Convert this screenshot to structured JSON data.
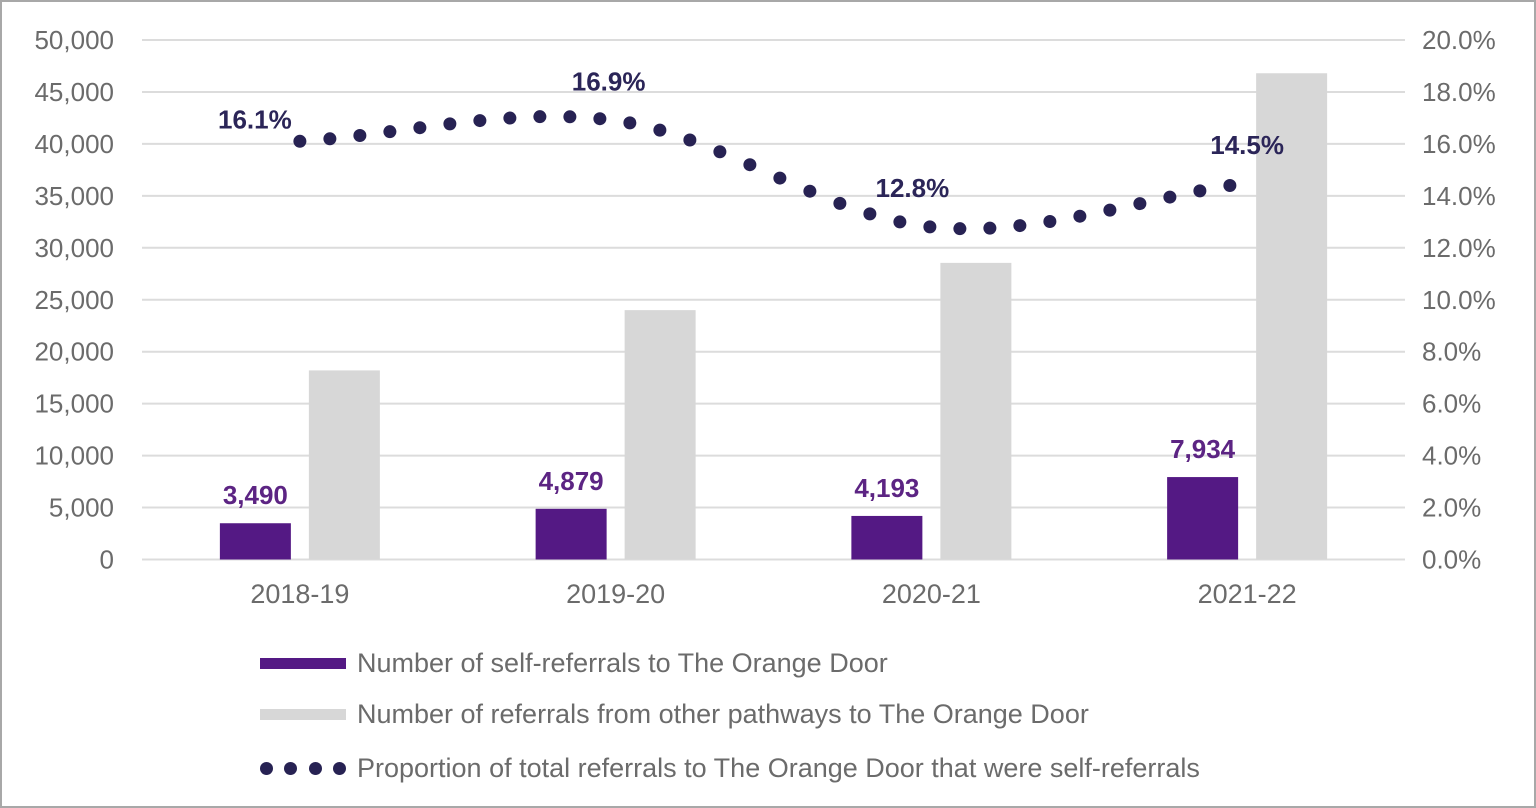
{
  "chart_data": {
    "type": "combo-bar-line",
    "title": "",
    "categories": [
      "2018-19",
      "2019-20",
      "2020-21",
      "2021-22"
    ],
    "series": [
      {
        "name": "Number of self-referrals to The Orange Door",
        "type": "bar",
        "axis": "left",
        "values": [
          3490,
          4879,
          4193,
          7934
        ],
        "data_labels": [
          "3,490",
          "4,879",
          "4,193",
          "7,934"
        ]
      },
      {
        "name": "Number of referrals from other pathways to The Orange Door",
        "type": "bar",
        "axis": "left",
        "values": [
          18200,
          24000,
          28550,
          46800
        ]
      },
      {
        "name": "Proportion of total referrals to The Orange Door that were self-referrals",
        "type": "dotted_line",
        "axis": "right",
        "values_pct": [
          16.1,
          16.9,
          12.8,
          14.5
        ],
        "data_labels": [
          "16.1%",
          "16.9%",
          "12.8%",
          "14.5%"
        ]
      }
    ],
    "left_axis": {
      "min": 0,
      "max": 50000,
      "step": 5000,
      "tick_labels": [
        "0",
        "5,000",
        "10,000",
        "15,000",
        "20,000",
        "25,000",
        "30,000",
        "35,000",
        "40,000",
        "45,000",
        "50,000"
      ]
    },
    "right_axis": {
      "min_pct": 0,
      "max_pct": 20,
      "step_pct": 2,
      "tick_labels": [
        "0.0%",
        "2.0%",
        "4.0%",
        "6.0%",
        "8.0%",
        "10.0%",
        "12.0%",
        "14.0%",
        "16.0%",
        "18.0%",
        "20.0%"
      ]
    },
    "grid": true,
    "legend_position": "bottom-left"
  },
  "colors": {
    "self_bar": "#541984",
    "other_bar": "#d7d7d7",
    "line_dot": "#272253",
    "bar_label_purple": "#5c2483",
    "annotation_navy": "#2b2558",
    "axis_text": "#6b6b6b",
    "gridline": "#dcdcdc",
    "border": "#a8a8a8"
  }
}
